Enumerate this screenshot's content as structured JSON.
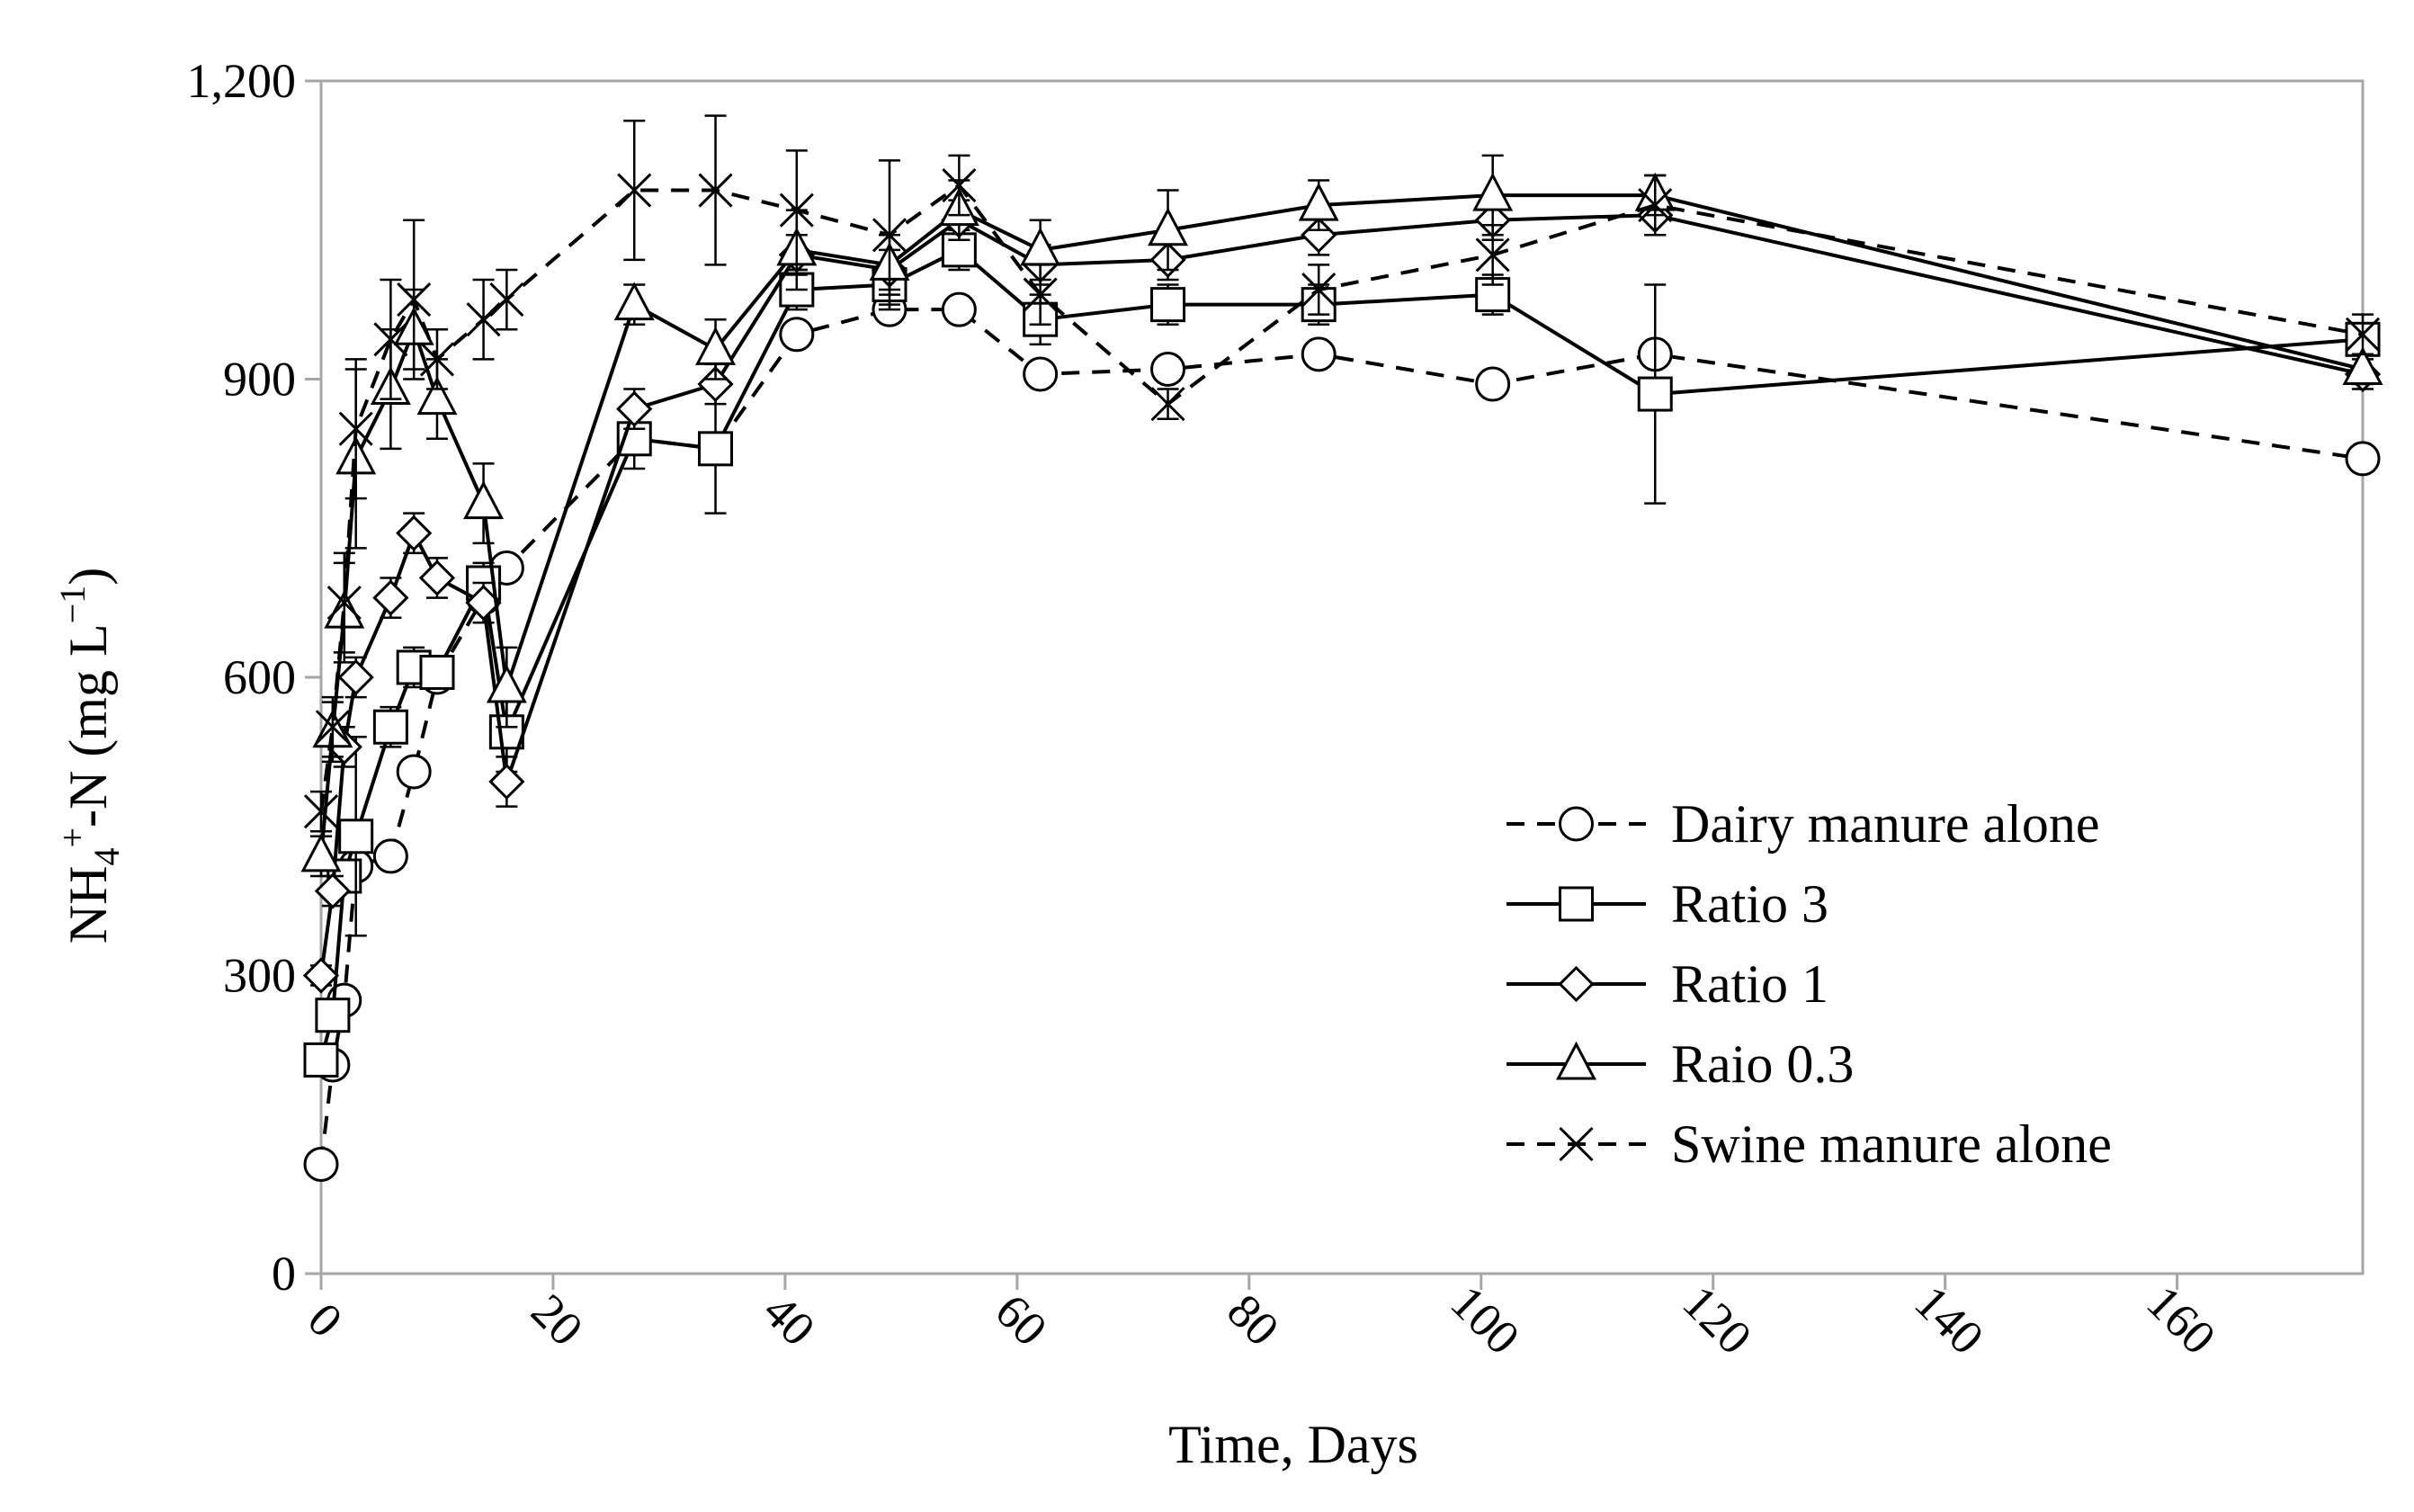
{
  "chart_data": {
    "type": "line",
    "title": "",
    "xlabel": "Time, Days",
    "ylabel_main": "NH",
    "ylabel_sub": "4",
    "ylabel_sup": "+",
    "ylabel_rest": "-N (mg L",
    "ylabel_exp": "−1",
    "ylabel_close": ")",
    "xlim": [
      0,
      176
    ],
    "ylim": [
      0,
      1200
    ],
    "xticks": [
      0,
      20,
      40,
      60,
      80,
      100,
      120,
      140,
      160
    ],
    "xtick_labels": [
      "0",
      "20",
      "40",
      "60",
      "80",
      "100",
      "120",
      "140",
      "160"
    ],
    "yticks": [
      0,
      300,
      600,
      900,
      1200
    ],
    "ytick_labels": [
      "0",
      "300",
      "600",
      "900",
      "1,200"
    ],
    "legend_position": "right-middle",
    "colors": {
      "line": "#000000",
      "axis": "#a6a6a6",
      "background": "#ffffff"
    },
    "series": [
      {
        "name": "Dairy manure alone",
        "marker": "circle",
        "dash": true,
        "x": [
          0,
          1,
          2,
          3,
          6,
          8,
          10,
          14,
          16,
          27,
          34,
          41,
          49,
          55,
          62,
          73,
          86,
          101,
          115,
          176
        ],
        "y": [
          110,
          210,
          275,
          410,
          420,
          505,
          600,
          680,
          710,
          840,
          830,
          945,
          970,
          970,
          905,
          910,
          925,
          895,
          925,
          820
        ],
        "err": [
          8,
          8,
          10,
          10,
          8,
          10,
          10,
          10,
          10,
          10,
          10,
          10,
          10,
          8,
          10,
          10,
          10,
          8,
          10,
          10
        ]
      },
      {
        "name": "Ratio 3",
        "marker": "square",
        "dash": false,
        "x": [
          0,
          1,
          2,
          3,
          6,
          8,
          10,
          14,
          16,
          27,
          34,
          41,
          49,
          55,
          62,
          73,
          86,
          101,
          115,
          176
        ],
        "y": [
          215,
          260,
          400,
          440,
          550,
          610,
          605,
          695,
          545,
          840,
          830,
          990,
          995,
          1030,
          960,
          975,
          975,
          985,
          885,
          940
        ],
        "err": [
          10,
          10,
          10,
          100,
          20,
          20,
          10,
          20,
          40,
          30,
          65,
          20,
          20,
          20,
          25,
          20,
          20,
          20,
          110,
          15
        ]
      },
      {
        "name": "Ratio 1",
        "marker": "diamond",
        "dash": false,
        "x": [
          0,
          1,
          2,
          3,
          6,
          8,
          10,
          14,
          16,
          27,
          34,
          41,
          49,
          55,
          62,
          73,
          86,
          101,
          115,
          176
        ],
        "y": [
          300,
          385,
          530,
          600,
          680,
          745,
          700,
          675,
          495,
          870,
          895,
          1025,
          1010,
          1060,
          1015,
          1020,
          1045,
          1060,
          1065,
          905
        ],
        "err": [
          10,
          15,
          20,
          20,
          20,
          20,
          20,
          20,
          25,
          20,
          20,
          20,
          20,
          20,
          20,
          20,
          20,
          20,
          20,
          15
        ]
      },
      {
        "name": "Raio 0.3",
        "marker": "triangle",
        "dash": false,
        "x": [
          0,
          1,
          2,
          3,
          6,
          8,
          10,
          14,
          16,
          27,
          34,
          41,
          49,
          55,
          62,
          73,
          86,
          101,
          115,
          176
        ],
        "y": [
          420,
          545,
          665,
          820,
          890,
          950,
          880,
          775,
          590,
          975,
          930,
          1030,
          1015,
          1070,
          1030,
          1050,
          1075,
          1085,
          1085,
          910
        ],
        "err": [
          20,
          30,
          50,
          90,
          60,
          40,
          40,
          40,
          40,
          20,
          30,
          40,
          30,
          30,
          30,
          40,
          25,
          40,
          20,
          15
        ]
      },
      {
        "name": "Swine manure alone",
        "marker": "cross",
        "dash": true,
        "x": [
          0,
          1,
          2,
          3,
          6,
          8,
          10,
          14,
          16,
          27,
          34,
          41,
          49,
          55,
          62,
          73,
          86,
          101,
          115,
          176
        ],
        "y": [
          465,
          550,
          675,
          850,
          940,
          980,
          920,
          960,
          980,
          1090,
          1090,
          1070,
          1045,
          1095,
          985,
          875,
          990,
          1025,
          1075,
          945
        ],
        "err": [
          20,
          30,
          50,
          70,
          60,
          80,
          30,
          40,
          30,
          70,
          75,
          60,
          75,
          30,
          30,
          15,
          25,
          30,
          30,
          20
        ]
      }
    ]
  }
}
